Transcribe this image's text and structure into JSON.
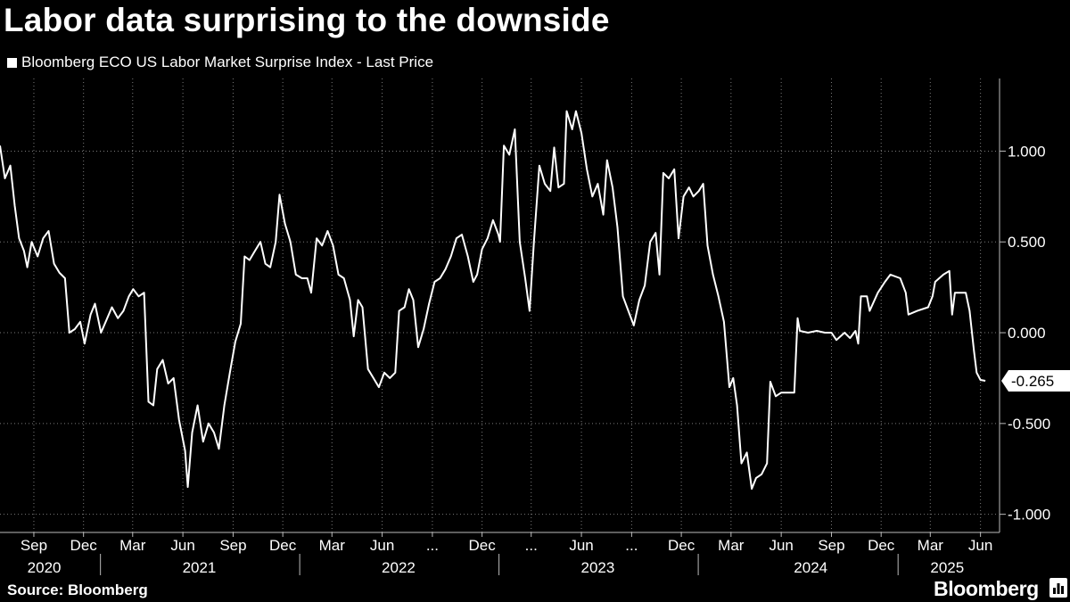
{
  "chart_data": {
    "type": "line",
    "title": "Labor data surprising to the downside",
    "legend_position": "top-left",
    "grid": true,
    "series": [
      {
        "name": "Bloomberg ECO US Labor Market Surprise Index - Last Price",
        "color": "#ffffff",
        "points": [
          [
            "2020-07-01",
            1.03
          ],
          [
            "2020-07-10",
            0.85
          ],
          [
            "2020-07-20",
            0.92
          ],
          [
            "2020-07-28",
            0.7
          ],
          [
            "2020-08-05",
            0.52
          ],
          [
            "2020-08-14",
            0.45
          ],
          [
            "2020-08-20",
            0.36
          ],
          [
            "2020-08-28",
            0.5
          ],
          [
            "2020-09-08",
            0.42
          ],
          [
            "2020-09-18",
            0.52
          ],
          [
            "2020-09-28",
            0.56
          ],
          [
            "2020-10-08",
            0.38
          ],
          [
            "2020-10-18",
            0.33
          ],
          [
            "2020-10-28",
            0.3
          ],
          [
            "2020-11-05",
            0.0
          ],
          [
            "2020-11-15",
            0.02
          ],
          [
            "2020-11-25",
            0.06
          ],
          [
            "2020-12-03",
            -0.06
          ],
          [
            "2020-12-14",
            0.1
          ],
          [
            "2020-12-22",
            0.16
          ],
          [
            "2021-01-02",
            0.0
          ],
          [
            "2021-01-12",
            0.07
          ],
          [
            "2021-01-22",
            0.14
          ],
          [
            "2021-02-02",
            0.08
          ],
          [
            "2021-02-12",
            0.12
          ],
          [
            "2021-02-22",
            0.2
          ],
          [
            "2021-03-02",
            0.24
          ],
          [
            "2021-03-12",
            0.2
          ],
          [
            "2021-03-22",
            0.22
          ],
          [
            "2021-03-30",
            -0.38
          ],
          [
            "2021-04-08",
            -0.4
          ],
          [
            "2021-04-15",
            -0.2
          ],
          [
            "2021-04-25",
            -0.15
          ],
          [
            "2021-05-05",
            -0.28
          ],
          [
            "2021-05-15",
            -0.25
          ],
          [
            "2021-05-25",
            -0.48
          ],
          [
            "2021-06-05",
            -0.65
          ],
          [
            "2021-06-10",
            -0.85
          ],
          [
            "2021-06-18",
            -0.55
          ],
          [
            "2021-06-28",
            -0.4
          ],
          [
            "2021-07-08",
            -0.6
          ],
          [
            "2021-07-18",
            -0.5
          ],
          [
            "2021-07-28",
            -0.55
          ],
          [
            "2021-08-06",
            -0.64
          ],
          [
            "2021-08-16",
            -0.4
          ],
          [
            "2021-08-26",
            -0.22
          ],
          [
            "2021-09-05",
            -0.05
          ],
          [
            "2021-09-15",
            0.05
          ],
          [
            "2021-09-22",
            0.42
          ],
          [
            "2021-10-01",
            0.4
          ],
          [
            "2021-10-11",
            0.45
          ],
          [
            "2021-10-21",
            0.5
          ],
          [
            "2021-10-30",
            0.38
          ],
          [
            "2021-11-08",
            0.36
          ],
          [
            "2021-11-18",
            0.5
          ],
          [
            "2021-11-25",
            0.76
          ],
          [
            "2021-12-05",
            0.6
          ],
          [
            "2021-12-15",
            0.5
          ],
          [
            "2021-12-25",
            0.32
          ],
          [
            "2022-01-05",
            0.3
          ],
          [
            "2022-01-15",
            0.3
          ],
          [
            "2022-01-22",
            0.22
          ],
          [
            "2022-02-01",
            0.52
          ],
          [
            "2022-02-11",
            0.48
          ],
          [
            "2022-02-21",
            0.56
          ],
          [
            "2022-03-03",
            0.48
          ],
          [
            "2022-03-13",
            0.32
          ],
          [
            "2022-03-23",
            0.3
          ],
          [
            "2022-04-03",
            0.18
          ],
          [
            "2022-04-10",
            -0.02
          ],
          [
            "2022-04-18",
            0.18
          ],
          [
            "2022-04-26",
            0.14
          ],
          [
            "2022-05-06",
            -0.2
          ],
          [
            "2022-05-16",
            -0.25
          ],
          [
            "2022-05-26",
            -0.3
          ],
          [
            "2022-06-05",
            -0.22
          ],
          [
            "2022-06-15",
            -0.25
          ],
          [
            "2022-06-25",
            -0.22
          ],
          [
            "2022-07-02",
            0.12
          ],
          [
            "2022-07-12",
            0.14
          ],
          [
            "2022-07-20",
            0.24
          ],
          [
            "2022-07-28",
            0.18
          ],
          [
            "2022-08-06",
            -0.08
          ],
          [
            "2022-08-16",
            0.02
          ],
          [
            "2022-08-26",
            0.16
          ],
          [
            "2022-09-05",
            0.28
          ],
          [
            "2022-09-15",
            0.3
          ],
          [
            "2022-09-25",
            0.35
          ],
          [
            "2022-10-05",
            0.42
          ],
          [
            "2022-10-15",
            0.52
          ],
          [
            "2022-10-25",
            0.54
          ],
          [
            "2022-11-05",
            0.42
          ],
          [
            "2022-11-15",
            0.28
          ],
          [
            "2022-11-22",
            0.32
          ],
          [
            "2022-12-01",
            0.46
          ],
          [
            "2022-12-11",
            0.52
          ],
          [
            "2022-12-21",
            0.62
          ],
          [
            "2022-12-31",
            0.54
          ],
          [
            "2023-01-03",
            0.5
          ],
          [
            "2023-01-10",
            1.03
          ],
          [
            "2023-01-20",
            0.98
          ],
          [
            "2023-01-30",
            1.12
          ],
          [
            "2023-02-08",
            0.5
          ],
          [
            "2023-02-18",
            0.3
          ],
          [
            "2023-02-26",
            0.12
          ],
          [
            "2023-03-06",
            0.5
          ],
          [
            "2023-03-16",
            0.92
          ],
          [
            "2023-03-26",
            0.82
          ],
          [
            "2023-04-05",
            0.78
          ],
          [
            "2023-04-12",
            1.02
          ],
          [
            "2023-04-20",
            0.8
          ],
          [
            "2023-04-30",
            0.82
          ],
          [
            "2023-05-05",
            1.22
          ],
          [
            "2023-05-15",
            1.12
          ],
          [
            "2023-05-22",
            1.22
          ],
          [
            "2023-06-01",
            1.1
          ],
          [
            "2023-06-11",
            0.9
          ],
          [
            "2023-06-21",
            0.75
          ],
          [
            "2023-07-01",
            0.82
          ],
          [
            "2023-07-11",
            0.65
          ],
          [
            "2023-07-18",
            0.95
          ],
          [
            "2023-07-28",
            0.8
          ],
          [
            "2023-08-06",
            0.58
          ],
          [
            "2023-08-16",
            0.2
          ],
          [
            "2023-08-26",
            0.12
          ],
          [
            "2023-09-05",
            0.04
          ],
          [
            "2023-09-15",
            0.18
          ],
          [
            "2023-09-25",
            0.26
          ],
          [
            "2023-10-05",
            0.5
          ],
          [
            "2023-10-15",
            0.55
          ],
          [
            "2023-10-22",
            0.32
          ],
          [
            "2023-10-29",
            0.88
          ],
          [
            "2023-11-08",
            0.85
          ],
          [
            "2023-11-18",
            0.9
          ],
          [
            "2023-11-26",
            0.52
          ],
          [
            "2023-12-05",
            0.75
          ],
          [
            "2023-12-15",
            0.8
          ],
          [
            "2023-12-23",
            0.75
          ],
          [
            "2024-01-02",
            0.78
          ],
          [
            "2024-01-10",
            0.82
          ],
          [
            "2024-01-18",
            0.48
          ],
          [
            "2024-01-28",
            0.32
          ],
          [
            "2024-02-07",
            0.2
          ],
          [
            "2024-02-17",
            0.06
          ],
          [
            "2024-02-27",
            -0.3
          ],
          [
            "2024-03-05",
            -0.25
          ],
          [
            "2024-03-12",
            -0.4
          ],
          [
            "2024-03-20",
            -0.72
          ],
          [
            "2024-03-30",
            -0.66
          ],
          [
            "2024-04-08",
            -0.86
          ],
          [
            "2024-04-16",
            -0.8
          ],
          [
            "2024-04-26",
            -0.78
          ],
          [
            "2024-05-06",
            -0.72
          ],
          [
            "2024-05-12",
            -0.27
          ],
          [
            "2024-05-22",
            -0.35
          ],
          [
            "2024-06-01",
            -0.33
          ],
          [
            "2024-06-15",
            -0.33
          ],
          [
            "2024-06-25",
            -0.33
          ],
          [
            "2024-07-01",
            0.08
          ],
          [
            "2024-07-05",
            0.01
          ],
          [
            "2024-07-20",
            0.0
          ],
          [
            "2024-08-05",
            0.01
          ],
          [
            "2024-08-20",
            0.0
          ],
          [
            "2024-09-01",
            0.0
          ],
          [
            "2024-09-10",
            -0.04
          ],
          [
            "2024-09-25",
            0.0
          ],
          [
            "2024-10-05",
            -0.03
          ],
          [
            "2024-10-15",
            0.01
          ],
          [
            "2024-10-20",
            -0.06
          ],
          [
            "2024-10-25",
            0.2
          ],
          [
            "2024-11-05",
            0.2
          ],
          [
            "2024-11-10",
            0.12
          ],
          [
            "2024-11-25",
            0.22
          ],
          [
            "2024-12-08",
            0.28
          ],
          [
            "2024-12-18",
            0.32
          ],
          [
            "2025-01-05",
            0.3
          ],
          [
            "2025-01-15",
            0.22
          ],
          [
            "2025-01-20",
            0.1
          ],
          [
            "2025-02-05",
            0.12
          ],
          [
            "2025-02-25",
            0.14
          ],
          [
            "2025-03-05",
            0.2
          ],
          [
            "2025-03-10",
            0.28
          ],
          [
            "2025-03-25",
            0.32
          ],
          [
            "2025-04-05",
            0.34
          ],
          [
            "2025-04-10",
            0.1
          ],
          [
            "2025-04-15",
            0.22
          ],
          [
            "2025-05-05",
            0.22
          ],
          [
            "2025-05-12",
            0.12
          ],
          [
            "2025-05-20",
            -0.1
          ],
          [
            "2025-05-25",
            -0.22
          ],
          [
            "2025-06-01",
            -0.26
          ],
          [
            "2025-06-10",
            -0.265
          ]
        ]
      }
    ],
    "last_value_label": "-0.265",
    "y_axis": {
      "position": "right",
      "range": [
        -1.1,
        1.4
      ],
      "ticks": [
        {
          "value": 1.0,
          "label": "1.000"
        },
        {
          "value": 0.5,
          "label": "0.500"
        },
        {
          "value": 0.0,
          "label": "0.000"
        },
        {
          "value": -0.5,
          "label": "-0.500"
        },
        {
          "value": -1.0,
          "label": "-1.000"
        }
      ]
    },
    "x_axis": {
      "range": [
        "2020-07-01",
        "2025-07-01"
      ],
      "ticks": [
        {
          "date": "2020-09-01",
          "label": "Sep"
        },
        {
          "date": "2020-12-01",
          "label": "Dec"
        },
        {
          "date": "2021-03-01",
          "label": "Mar"
        },
        {
          "date": "2021-06-01",
          "label": "Jun"
        },
        {
          "date": "2021-09-01",
          "label": "Sep"
        },
        {
          "date": "2021-12-01",
          "label": "Dec"
        },
        {
          "date": "2022-03-01",
          "label": "Mar"
        },
        {
          "date": "2022-06-01",
          "label": "Jun"
        },
        {
          "date": "2022-09-01",
          "label": "..."
        },
        {
          "date": "2022-12-01",
          "label": "Dec"
        },
        {
          "date": "2023-03-01",
          "label": "..."
        },
        {
          "date": "2023-06-01",
          "label": "Jun"
        },
        {
          "date": "2023-09-01",
          "label": "..."
        },
        {
          "date": "2023-12-01",
          "label": "Dec"
        },
        {
          "date": "2024-03-01",
          "label": "Mar"
        },
        {
          "date": "2024-06-01",
          "label": "Jun"
        },
        {
          "date": "2024-09-01",
          "label": "Sep"
        },
        {
          "date": "2024-12-01",
          "label": "Dec"
        },
        {
          "date": "2025-03-01",
          "label": "Mar"
        },
        {
          "date": "2025-06-01",
          "label": "Jun"
        }
      ],
      "years": [
        {
          "label": "2020",
          "center": "2020-09-20"
        },
        {
          "label": "2021",
          "center": "2021-07-01"
        },
        {
          "label": "2022",
          "center": "2022-07-01"
        },
        {
          "label": "2023",
          "center": "2023-07-01"
        },
        {
          "label": "2024",
          "center": "2024-07-25"
        },
        {
          "label": "2025",
          "center": "2025-04-01"
        }
      ],
      "year_separators": [
        "2021-01-01",
        "2022-01-01",
        "2023-01-01",
        "2024-01-01",
        "2025-01-01"
      ]
    }
  },
  "footer": {
    "source": "Source: Bloomberg",
    "brand": "Bloomberg"
  }
}
